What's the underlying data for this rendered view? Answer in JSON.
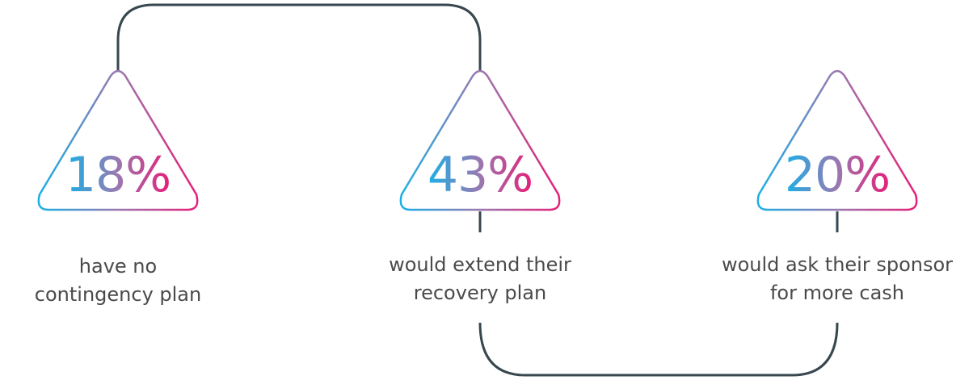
{
  "stats": [
    {
      "value": "18%",
      "caption": [
        "have no",
        "contingency plan"
      ]
    },
    {
      "value": "43%",
      "caption": [
        "would extend their",
        "recovery plan"
      ]
    },
    {
      "value": "20%",
      "caption": [
        "would ask their sponsor",
        "for more cash"
      ]
    }
  ],
  "colors": {
    "gradient_start": "#1ab0e6",
    "gradient_mid": "#9a78b0",
    "gradient_end": "#e61e78",
    "connector": "#37474f",
    "caption_text": "#4a4a4a"
  }
}
